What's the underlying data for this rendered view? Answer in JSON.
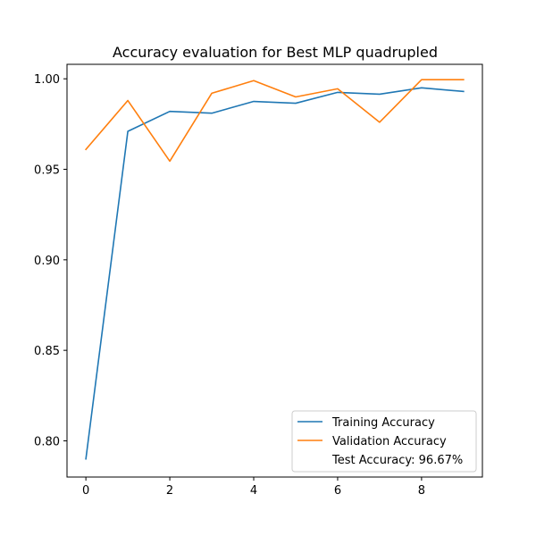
{
  "chart_data": {
    "type": "line",
    "title": "Accuracy evaluation for Best MLP quadrupled",
    "xlabel": "",
    "ylabel": "",
    "x": [
      0,
      1,
      2,
      3,
      4,
      5,
      6,
      7,
      8,
      9
    ],
    "xlim": [
      -0.45,
      9.45
    ],
    "ylim": [
      0.78,
      1.008
    ],
    "xticks": [
      0,
      2,
      4,
      6,
      8
    ],
    "yticks": [
      0.8,
      0.85,
      0.9,
      0.95,
      1.0
    ],
    "ytick_labels": [
      "0.80",
      "0.85",
      "0.90",
      "0.95",
      "1.00"
    ],
    "grid": false,
    "legend_position": "lower-right",
    "series": [
      {
        "name": "Training Accuracy",
        "color": "#1f77b4",
        "values": [
          0.79,
          0.971,
          0.982,
          0.981,
          0.9875,
          0.9865,
          0.9925,
          0.9915,
          0.995,
          0.993
        ]
      },
      {
        "name": "Validation Accuracy",
        "color": "#ff7f0e",
        "values": [
          0.961,
          0.988,
          0.9545,
          0.992,
          0.999,
          0.99,
          0.9945,
          0.976,
          0.9995,
          0.9995
        ]
      }
    ],
    "annotation": "Test Accuracy: 96.67%"
  }
}
